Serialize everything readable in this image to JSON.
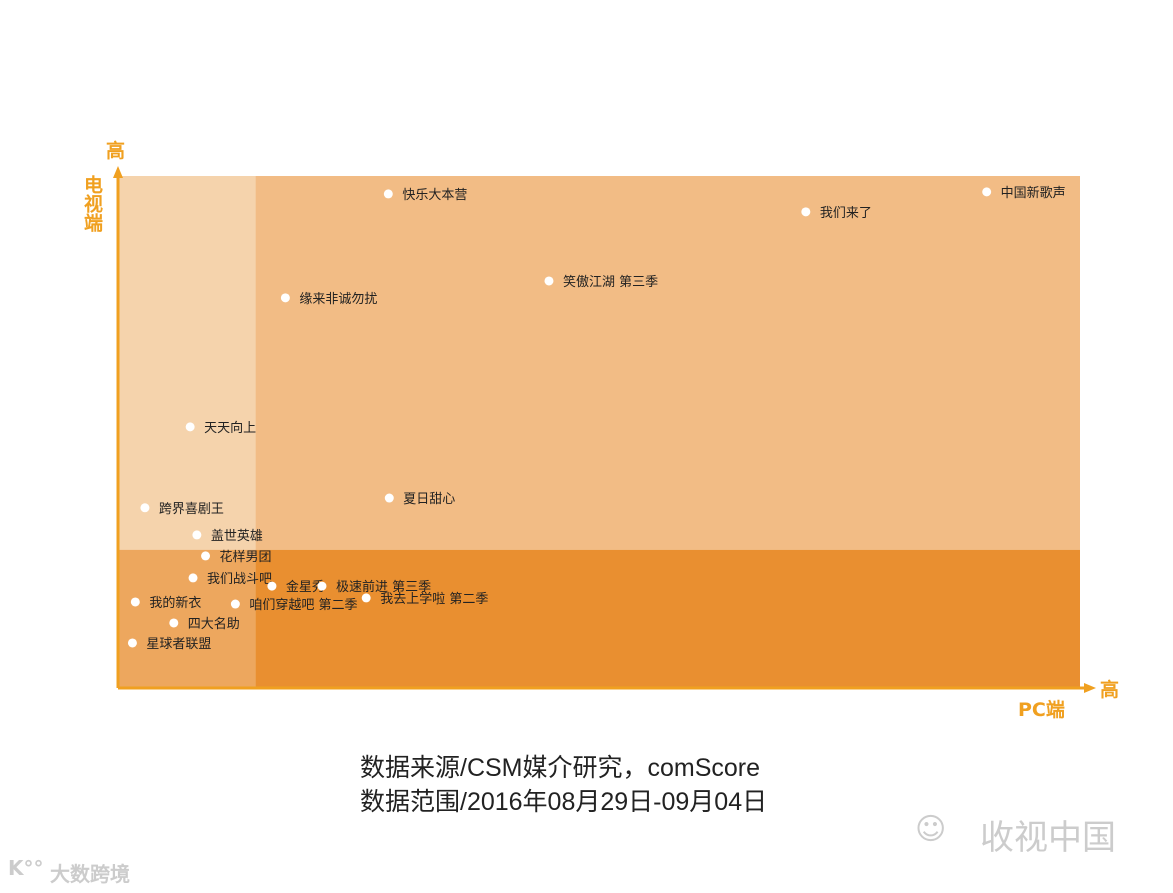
{
  "chart_data": {
    "type": "scatter",
    "title": "",
    "xlabel": "PC端",
    "ylabel": "电视端",
    "x_high_label": "高",
    "y_high_label": "高",
    "xlim": [
      0,
      100
    ],
    "ylim": [
      0,
      100
    ],
    "quadrant_split": {
      "x": 14.3,
      "y": 27
    },
    "quadrant_colors": {
      "top_left": "#f5d3ac",
      "top_right": "#f2bc85",
      "bottom_left": "#eda75e",
      "bottom_right": "#e98f30"
    },
    "axis_color": "#f0a020",
    "grid": false,
    "points": [
      {
        "label": "快乐大本营",
        "x": 28.1,
        "y": 96.5
      },
      {
        "label": "中国新歌声",
        "x": 90.3,
        "y": 96.9
      },
      {
        "label": "我们来了",
        "x": 71.5,
        "y": 93.0
      },
      {
        "label": "笑傲江湖 第三季",
        "x": 44.8,
        "y": 79.5
      },
      {
        "label": "缘来非诚勿扰",
        "x": 17.4,
        "y": 76.2
      },
      {
        "label": "天天向上",
        "x": 7.5,
        "y": 51.0
      },
      {
        "label": "夏日甜心",
        "x": 28.2,
        "y": 37.1
      },
      {
        "label": "跨界喜剧王",
        "x": 2.8,
        "y": 35.2
      },
      {
        "label": "盖世英雄",
        "x": 8.2,
        "y": 29.9
      },
      {
        "label": "花样男团",
        "x": 9.1,
        "y": 25.8
      },
      {
        "label": "我们战斗吧",
        "x": 7.8,
        "y": 21.5
      },
      {
        "label": "金星秀",
        "x": 16.0,
        "y": 19.9
      },
      {
        "label": "极速前进 第三季",
        "x": 21.2,
        "y": 19.9
      },
      {
        "label": "我的新衣",
        "x": 1.8,
        "y": 16.8
      },
      {
        "label": "咱们穿越吧 第二季",
        "x": 12.2,
        "y": 16.4
      },
      {
        "label": "我去上学啦 第二季",
        "x": 25.8,
        "y": 17.6
      },
      {
        "label": "四大名助",
        "x": 5.8,
        "y": 12.7
      },
      {
        "label": "星球者联盟",
        "x": 1.5,
        "y": 8.8
      }
    ]
  },
  "footer": {
    "source": "数据来源/CSM媒介研究，comScore",
    "range": "数据范围/2016年08月29日-09月04日"
  },
  "watermarks": {
    "wechat": "收视中国",
    "logo": "大数跨境"
  }
}
